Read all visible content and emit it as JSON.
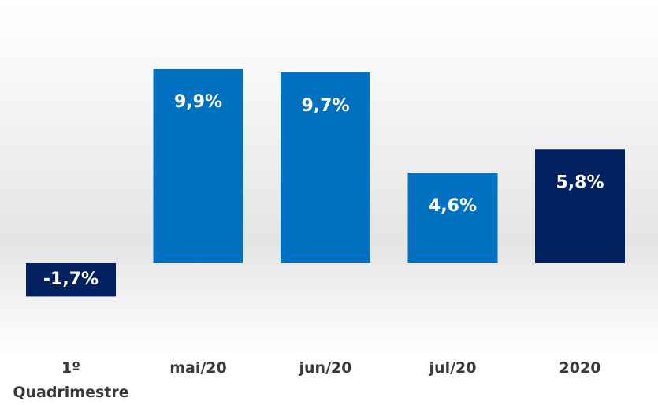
{
  "chart_data": {
    "type": "bar",
    "categories": [
      "1º Quadrimestre",
      "mai/20",
      "jun/20",
      "jul/20",
      "2020"
    ],
    "values": [
      -1.7,
      9.9,
      9.7,
      4.6,
      5.8
    ],
    "value_labels": [
      "-1,7%",
      "9,9%",
      "9,7%",
      "4,6%",
      "5,8%"
    ],
    "colors": [
      "#002060",
      "#0070c0",
      "#0070c0",
      "#0070c0",
      "#002060"
    ]
  }
}
